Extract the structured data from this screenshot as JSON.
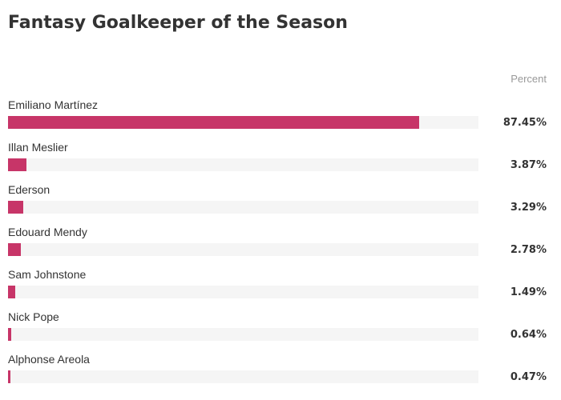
{
  "chart_data": {
    "type": "bar",
    "orientation": "horizontal",
    "title": "Fantasy Goalkeeper of the Season",
    "value_header": "Percent",
    "bar_color": "#c73568",
    "track_color": "#f5f5f5",
    "xlim": [
      0,
      100
    ],
    "grid": false,
    "categories": [
      "Emiliano Martínez",
      "Illan Meslier",
      "Ederson",
      "Edouard Mendy",
      "Sam Johnstone",
      "Nick Pope",
      "Alphonse Areola"
    ],
    "values": [
      87.45,
      3.87,
      3.29,
      2.78,
      1.49,
      0.64,
      0.47
    ],
    "value_labels": [
      "87.45%",
      "3.87%",
      "3.29%",
      "2.78%",
      "1.49%",
      "0.64%",
      "0.47%"
    ]
  }
}
